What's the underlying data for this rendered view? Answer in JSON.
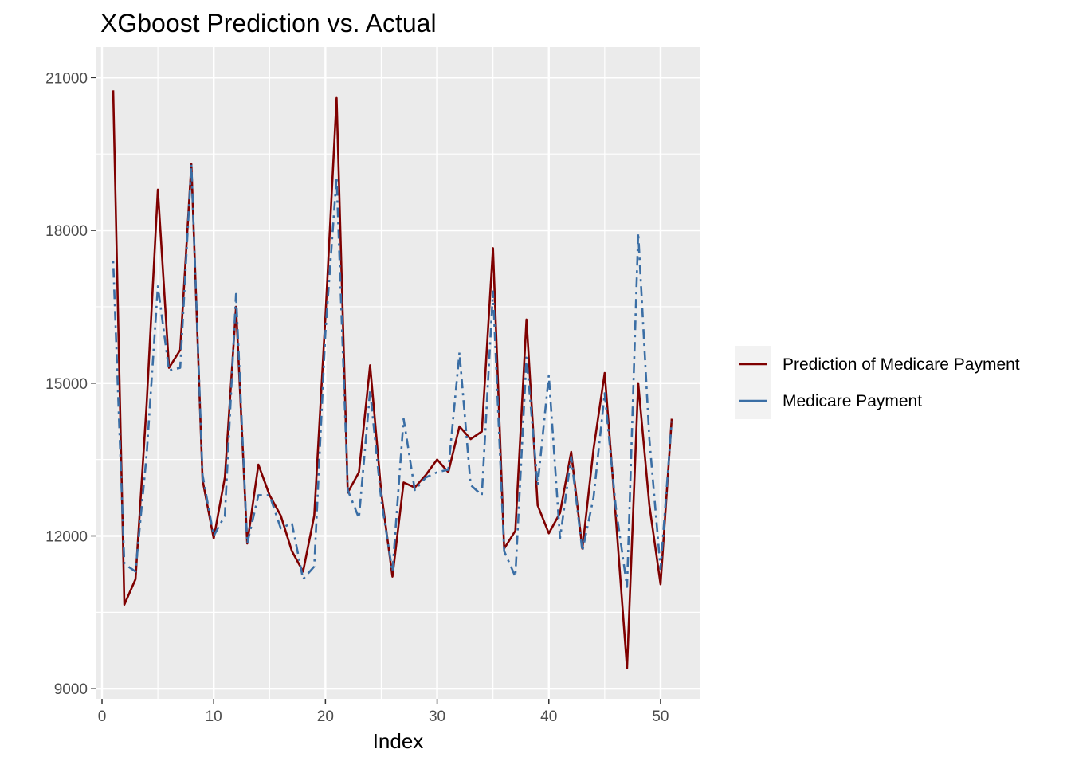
{
  "chart_data": {
    "type": "line",
    "title": "XGboost Prediction vs. Actual",
    "xlabel": "Index",
    "ylabel": "",
    "xlim": [
      -0.5,
      53.5
    ],
    "ylim": [
      8800,
      21600
    ],
    "x_ticks": [
      0,
      10,
      20,
      30,
      40,
      50
    ],
    "x_minor_ticks": [
      5,
      15,
      25,
      35,
      45
    ],
    "y_ticks": [
      9000,
      12000,
      15000,
      18000,
      21000
    ],
    "y_minor_ticks": [
      10500,
      13500,
      16500,
      19500
    ],
    "grid": true,
    "legend_position": "right",
    "x": [
      1,
      2,
      3,
      4,
      5,
      6,
      7,
      8,
      9,
      10,
      11,
      12,
      13,
      14,
      15,
      16,
      17,
      18,
      19,
      20,
      21,
      22,
      23,
      24,
      25,
      26,
      27,
      28,
      29,
      30,
      31,
      32,
      33,
      34,
      35,
      36,
      37,
      38,
      39,
      40,
      41,
      42,
      43,
      44,
      45,
      46,
      47,
      48,
      49,
      50,
      51
    ],
    "series": [
      {
        "name": "Prediction of Medicare Payment",
        "color": "#7f0000",
        "dash": "solid",
        "values": [
          20750,
          10650,
          11150,
          14600,
          18800,
          15300,
          15650,
          19300,
          13100,
          11950,
          13150,
          16500,
          11850,
          13400,
          12800,
          12400,
          11700,
          11300,
          12400,
          16300,
          20600,
          12850,
          13250,
          15350,
          12850,
          11200,
          13050,
          12950,
          13200,
          13500,
          13250,
          14150,
          13900,
          14050,
          17650,
          11750,
          12100,
          16250,
          12600,
          12050,
          12450,
          13650,
          11750,
          13700,
          15200,
          12350,
          9400,
          15000,
          12600,
          11050,
          14300
        ]
      },
      {
        "name": "Medicare Payment",
        "color": "#3a6ea5",
        "dash": "dotdash",
        "values": [
          17400,
          11450,
          11300,
          13600,
          16900,
          15250,
          15300,
          19300,
          13200,
          12000,
          12400,
          16750,
          11850,
          12800,
          12800,
          12150,
          12250,
          11150,
          11400,
          16000,
          19050,
          12900,
          12350,
          14850,
          12700,
          11300,
          14300,
          12900,
          13150,
          13250,
          13300,
          15600,
          13000,
          12800,
          16800,
          11700,
          11200,
          15500,
          13000,
          15150,
          11950,
          13550,
          11700,
          12750,
          14800,
          12550,
          11000,
          17950,
          13900,
          11350,
          14250
        ]
      }
    ]
  }
}
